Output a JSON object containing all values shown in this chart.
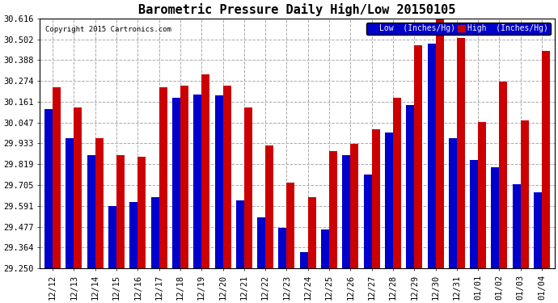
{
  "title": "Barometric Pressure Daily High/Low 20150105",
  "copyright": "Copyright 2015 Cartronics.com",
  "legend_low": "Low  (Inches/Hg)",
  "legend_high": "High  (Inches/Hg)",
  "categories": [
    "12/12",
    "12/13",
    "12/14",
    "12/15",
    "12/16",
    "12/17",
    "12/18",
    "12/19",
    "12/20",
    "12/21",
    "12/22",
    "12/23",
    "12/24",
    "12/25",
    "12/26",
    "12/27",
    "12/28",
    "12/29",
    "12/30",
    "12/31",
    "01/01",
    "01/02",
    "01/03",
    "01/04"
  ],
  "low_values": [
    30.12,
    29.96,
    29.87,
    29.59,
    29.61,
    29.64,
    30.18,
    30.2,
    30.195,
    29.62,
    29.53,
    29.47,
    29.34,
    29.46,
    29.87,
    29.76,
    29.99,
    30.14,
    30.48,
    29.96,
    29.84,
    29.8,
    29.71,
    29.665
  ],
  "high_values": [
    30.24,
    30.13,
    29.96,
    29.87,
    29.86,
    30.24,
    30.25,
    30.31,
    30.25,
    30.13,
    29.92,
    29.72,
    29.64,
    29.89,
    29.93,
    30.01,
    30.18,
    30.47,
    30.61,
    30.51,
    30.05,
    30.27,
    30.06,
    30.44
  ],
  "ylim_min": 29.25,
  "ylim_max": 30.616,
  "yticks": [
    29.25,
    29.364,
    29.477,
    29.591,
    29.705,
    29.819,
    29.933,
    30.047,
    30.161,
    30.274,
    30.388,
    30.502,
    30.616
  ],
  "low_color": "#0000cc",
  "high_color": "#cc0000",
  "background_color": "#ffffff",
  "grid_color": "#aaaaaa",
  "title_fontsize": 11,
  "tick_fontsize": 7.5,
  "bar_width": 0.38
}
